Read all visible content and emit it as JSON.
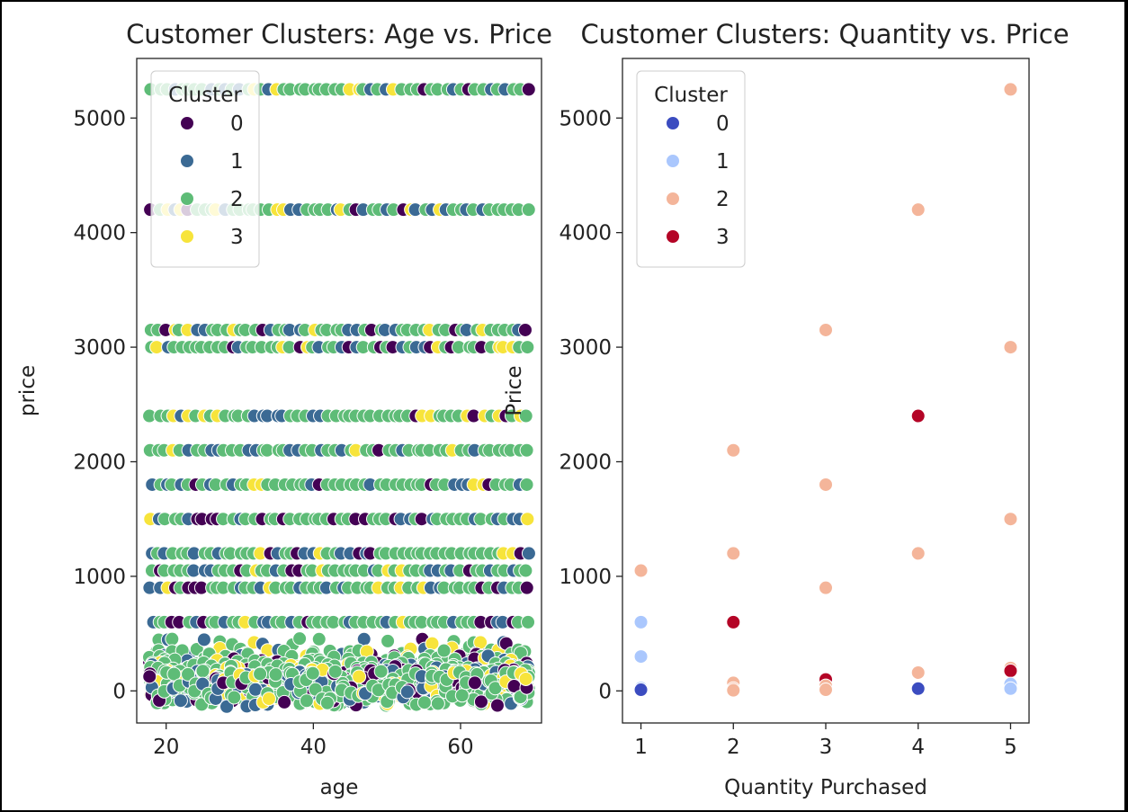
{
  "chart_data": [
    {
      "type": "scatter",
      "title": "Customer Clusters: Age vs. Price",
      "xlabel": "age",
      "ylabel": "price",
      "xlim": [
        16,
        71
      ],
      "ylim": [
        -280,
        5520
      ],
      "xticks": [
        20,
        40,
        60
      ],
      "yticks": [
        0,
        1000,
        2000,
        3000,
        4000,
        5000
      ],
      "legend": {
        "title": "Cluster",
        "placement": "top-left",
        "entries": [
          "0",
          "1",
          "2",
          "3"
        ]
      },
      "palette": "viridis",
      "colors": {
        "0": "#440154",
        "1": "#3b6a94",
        "2": "#5ebc77",
        "3": "#f7e43b"
      },
      "x_range": [
        18,
        69
      ],
      "price_levels": [
        5250,
        4200,
        3150,
        3000,
        2400,
        2100,
        1800,
        1500,
        1200,
        1050,
        900,
        600,
        300,
        200,
        150,
        120,
        100,
        90,
        60,
        50,
        30,
        25,
        15
      ],
      "note_points": "Points cover every age 18-69 at each price level; all four clusters appear at all price levels."
    },
    {
      "type": "scatter",
      "title": "Customer Clusters: Quantity vs. Price",
      "xlabel": "Quantity Purchased",
      "ylabel": "Price",
      "xlim": [
        0.8,
        5.2
      ],
      "ylim": [
        -280,
        5520
      ],
      "xticks": [
        1,
        2,
        3,
        4,
        5
      ],
      "yticks": [
        0,
        1000,
        2000,
        3000,
        4000,
        5000
      ],
      "legend": {
        "title": "Cluster",
        "placement": "top-left",
        "entries": [
          "0",
          "1",
          "2",
          "3"
        ]
      },
      "palette": "coolwarm",
      "colors": {
        "0": "#3b4cc0",
        "1": "#aac7fd",
        "2": "#f4b59a",
        "3": "#b40426"
      },
      "points": [
        {
          "x": 1,
          "y": 1050,
          "cluster": 2
        },
        {
          "x": 1,
          "y": 600,
          "cluster": 1
        },
        {
          "x": 1,
          "y": 300,
          "cluster": 1
        },
        {
          "x": 1,
          "y": 25,
          "cluster": 1
        },
        {
          "x": 1,
          "y": 10,
          "cluster": 0
        },
        {
          "x": 2,
          "y": 2100,
          "cluster": 2
        },
        {
          "x": 2,
          "y": 1200,
          "cluster": 2
        },
        {
          "x": 2,
          "y": 600,
          "cluster": 3
        },
        {
          "x": 2,
          "y": 70,
          "cluster": 2
        },
        {
          "x": 2,
          "y": 20,
          "cluster": 2
        },
        {
          "x": 2,
          "y": 5,
          "cluster": 2
        },
        {
          "x": 3,
          "y": 3150,
          "cluster": 2
        },
        {
          "x": 3,
          "y": 1800,
          "cluster": 2
        },
        {
          "x": 3,
          "y": 900,
          "cluster": 2
        },
        {
          "x": 3,
          "y": 100,
          "cluster": 3
        },
        {
          "x": 3,
          "y": 45,
          "cluster": 2
        },
        {
          "x": 3,
          "y": 10,
          "cluster": 2
        },
        {
          "x": 4,
          "y": 4200,
          "cluster": 2
        },
        {
          "x": 4,
          "y": 2400,
          "cluster": 3
        },
        {
          "x": 4,
          "y": 1200,
          "cluster": 2
        },
        {
          "x": 4,
          "y": 160,
          "cluster": 2
        },
        {
          "x": 4,
          "y": 20,
          "cluster": 0
        },
        {
          "x": 5,
          "y": 5250,
          "cluster": 2
        },
        {
          "x": 5,
          "y": 3000,
          "cluster": 2
        },
        {
          "x": 5,
          "y": 1500,
          "cluster": 2
        },
        {
          "x": 5,
          "y": 200,
          "cluster": 2
        },
        {
          "x": 5,
          "y": 175,
          "cluster": 3
        },
        {
          "x": 5,
          "y": 60,
          "cluster": 1
        },
        {
          "x": 5,
          "y": 20,
          "cluster": 1
        }
      ]
    }
  ]
}
